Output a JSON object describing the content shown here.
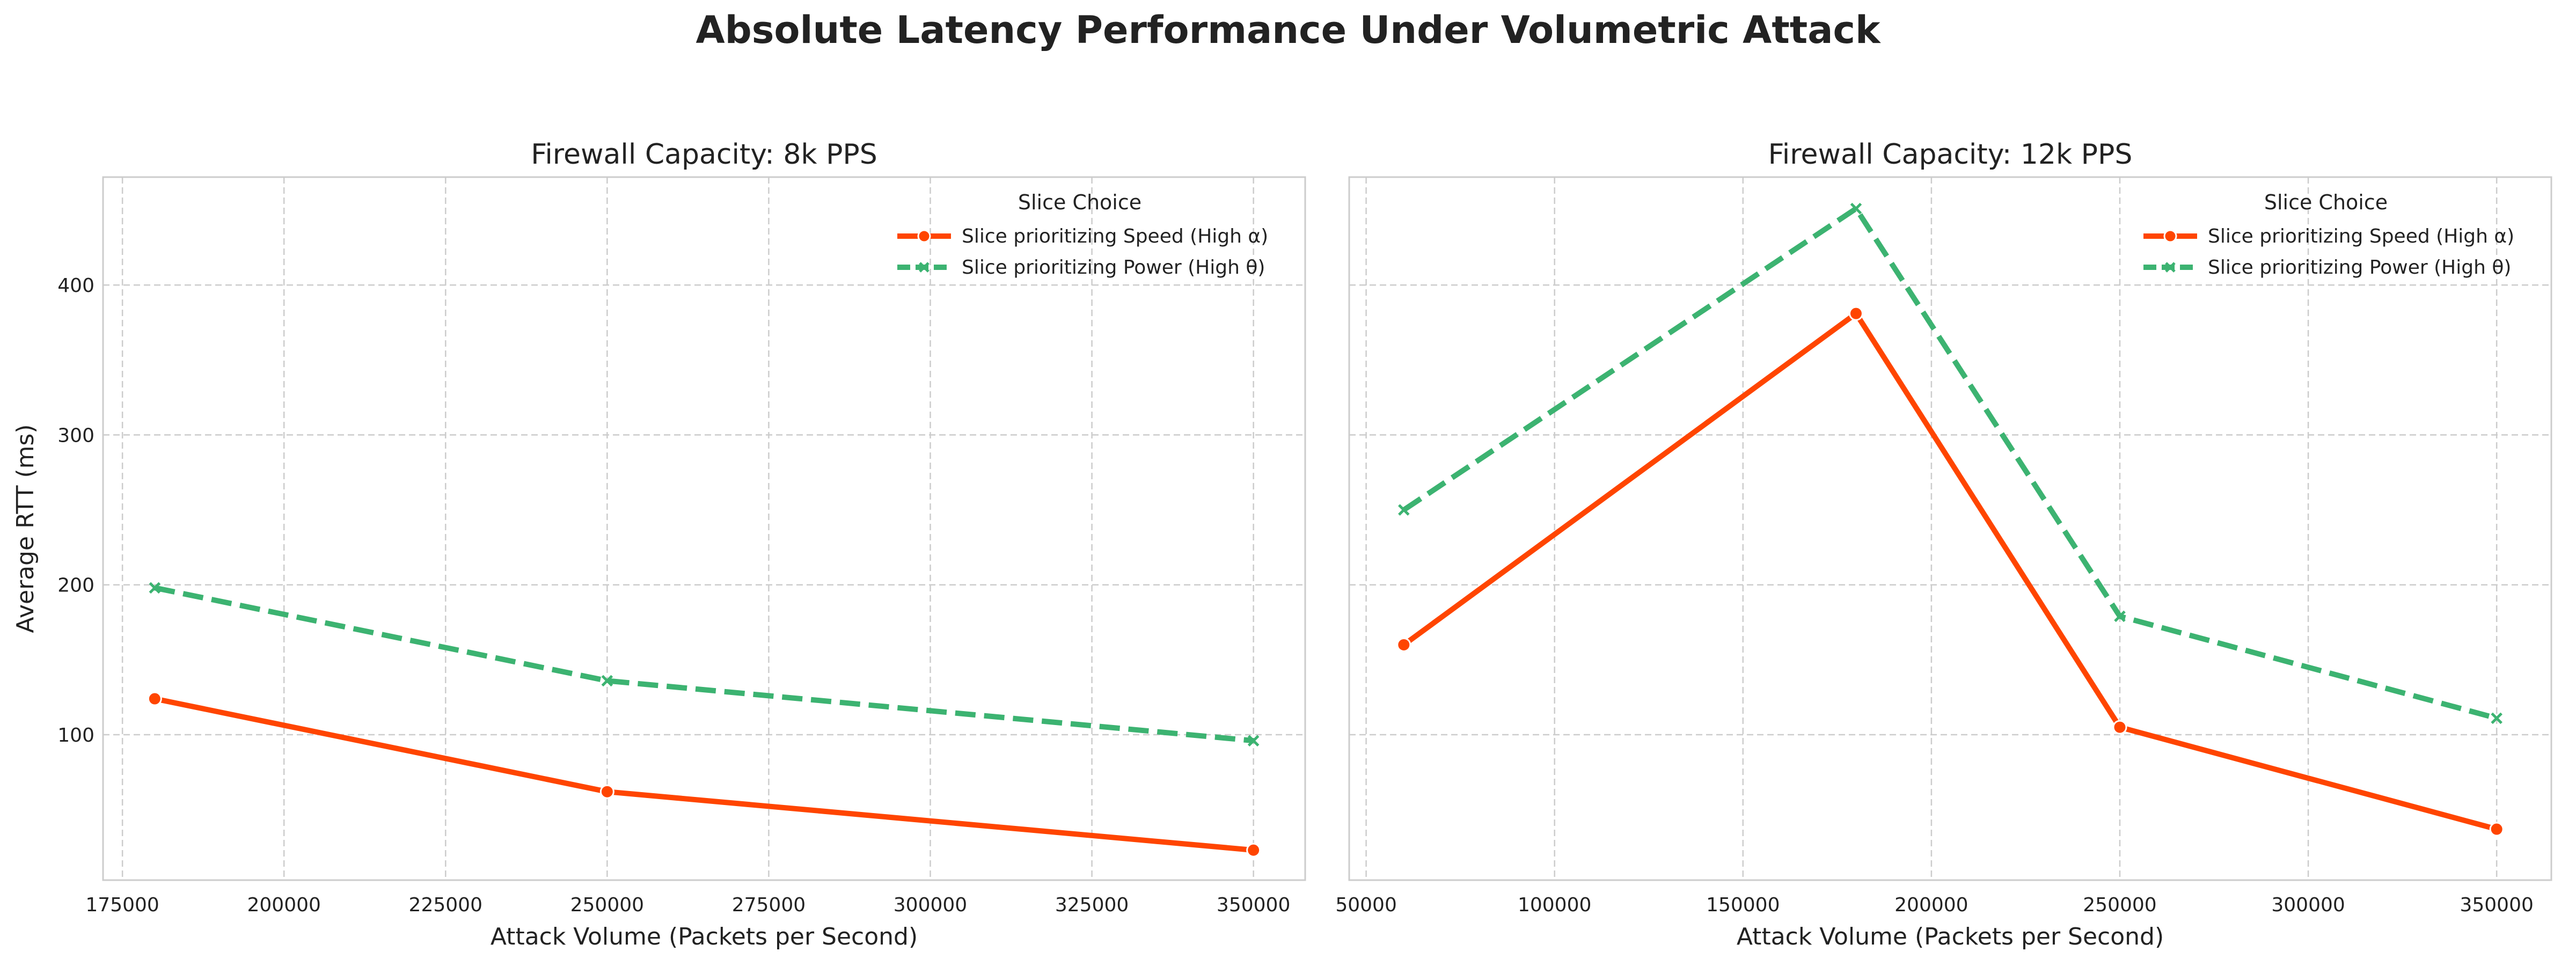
{
  "figure_title": "Absolute Latency Performance Under Volumetric Attack",
  "colors": {
    "speed": "#ff4500",
    "power": "#3cb371",
    "grid": "#cccccc",
    "axes_edge": "#cccccc",
    "text": "#222222"
  },
  "chart_data": [
    {
      "type": "line",
      "title": "Firewall Capacity: 8k PPS",
      "xlabel": "Attack Volume (Packets per Second)",
      "ylabel": "Average RTT (ms)",
      "xlim": [
        172000,
        358000
      ],
      "ylim": [
        3,
        472
      ],
      "xticks": [
        175000,
        200000,
        225000,
        250000,
        275000,
        300000,
        325000,
        350000
      ],
      "yticks": [
        100,
        200,
        300,
        400
      ],
      "grid": true,
      "legend": {
        "title": "Slice Choice",
        "placement": "top-right"
      },
      "series": [
        {
          "name": "Slice prioritizing Speed (High α)",
          "style": "solid",
          "marker": "circle",
          "color": "#ff4500",
          "x": [
            180000,
            250000,
            350000
          ],
          "y": [
            124,
            62,
            23
          ]
        },
        {
          "name": "Slice prioritizing Power (High θ)",
          "style": "dashed",
          "marker": "x",
          "color": "#3cb371",
          "x": [
            180000,
            250000,
            350000
          ],
          "y": [
            198,
            136,
            96
          ]
        }
      ]
    },
    {
      "type": "line",
      "title": "Firewall Capacity: 12k PPS",
      "xlabel": "Attack Volume (Packets per Second)",
      "ylabel": "",
      "xlim": [
        45500,
        364500
      ],
      "ylim": [
        3,
        472
      ],
      "xticks": [
        50000,
        100000,
        150000,
        200000,
        250000,
        300000,
        350000
      ],
      "yticks": [
        100,
        200,
        300,
        400
      ],
      "grid": true,
      "legend": {
        "title": "Slice Choice",
        "placement": "top-right"
      },
      "series": [
        {
          "name": "Slice prioritizing Speed (High α)",
          "style": "solid",
          "marker": "circle",
          "color": "#ff4500",
          "x": [
            60000,
            180000,
            250000,
            350000
          ],
          "y": [
            160,
            381,
            105,
            37
          ]
        },
        {
          "name": "Slice prioritizing Power (High θ)",
          "style": "dashed",
          "marker": "x",
          "color": "#3cb371",
          "x": [
            60000,
            180000,
            250000,
            350000
          ],
          "y": [
            250,
            451,
            179,
            111
          ]
        }
      ]
    }
  ]
}
